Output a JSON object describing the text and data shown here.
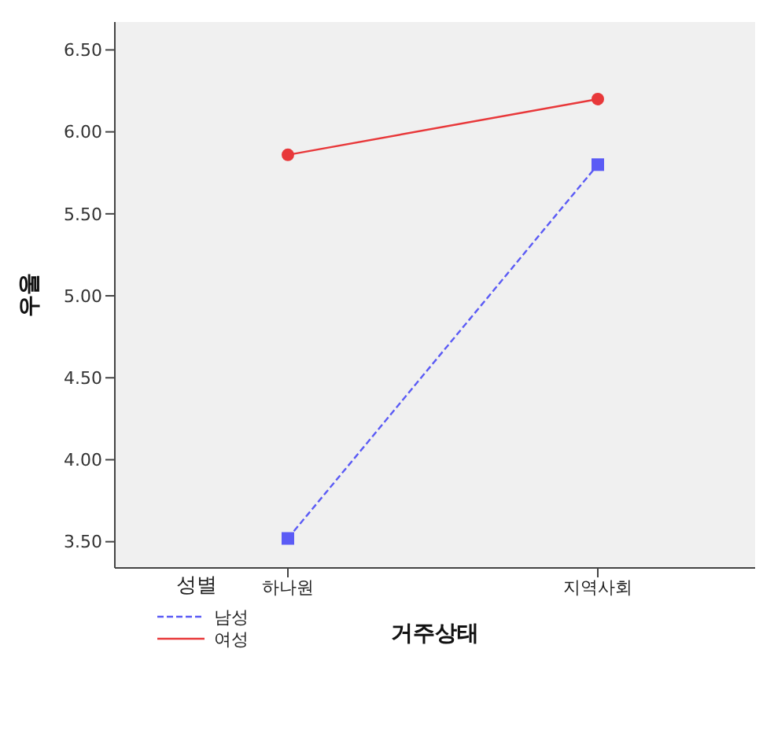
{
  "chart_data": {
    "type": "line",
    "xlabel": "거주상태",
    "ylabel": "우울",
    "legend_title": "성별",
    "categories": [
      "하나원",
      "지역사회"
    ],
    "series": [
      {
        "name": "남성",
        "color": "#5b5bf5",
        "values": [
          3.52,
          5.8
        ],
        "marker": "square",
        "line_style": "dashed"
      },
      {
        "name": "여성",
        "color": "#e8383a",
        "values": [
          5.86,
          6.2
        ],
        "marker": "circle",
        "line_style": "solid"
      }
    ],
    "ylim": [
      3.34,
      6.67
    ],
    "yticks": [
      {
        "value": 3.5,
        "label": "3.50"
      },
      {
        "value": 4,
        "label": "4.00"
      },
      {
        "value": 4.5,
        "label": "4.50"
      },
      {
        "value": 5,
        "label": "5.00"
      },
      {
        "value": 5.5,
        "label": "5.50"
      },
      {
        "value": 6,
        "label": "6.00"
      },
      {
        "value": 6.5,
        "label": "6.50"
      }
    ],
    "grid": false,
    "legend": "bottom left"
  }
}
